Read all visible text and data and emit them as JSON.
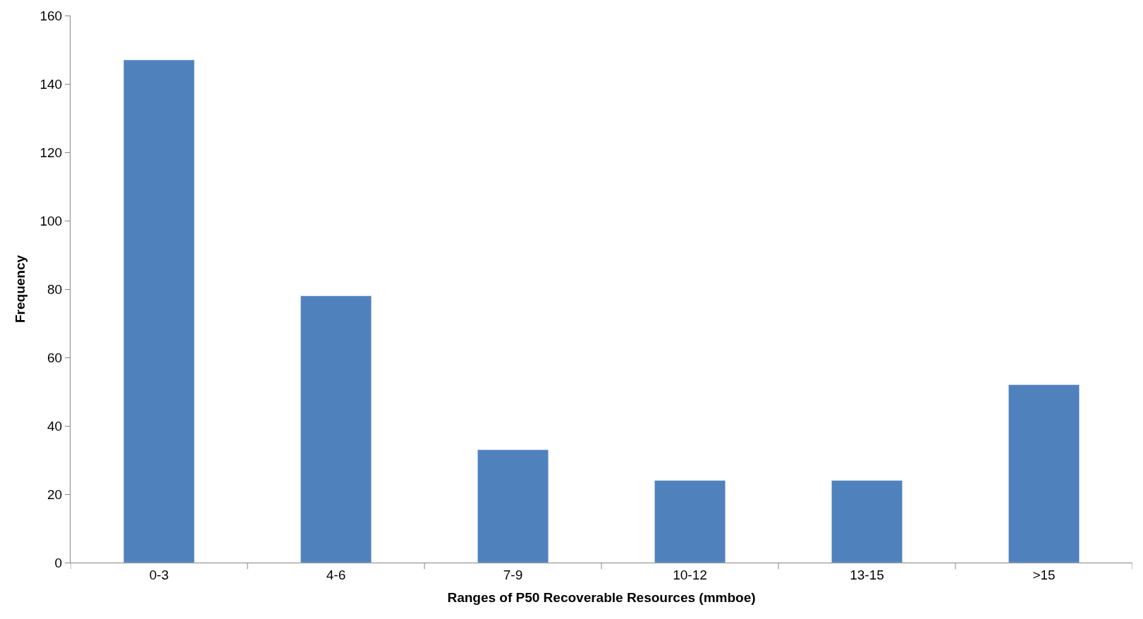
{
  "chart_data": {
    "type": "bar",
    "xlabel": "Ranges of P50 Recoverable Resources (mmboe)",
    "ylabel": "Frequency",
    "categories": [
      "0-3",
      "4-6",
      "7-9",
      "10-12",
      "13-15",
      ">15"
    ],
    "values": [
      147,
      78,
      33,
      24,
      24,
      52
    ],
    "color": "#4f81bd",
    "ylim": [
      0,
      160
    ],
    "yticks": [
      0,
      20,
      40,
      60,
      80,
      100,
      120,
      140,
      160
    ]
  }
}
